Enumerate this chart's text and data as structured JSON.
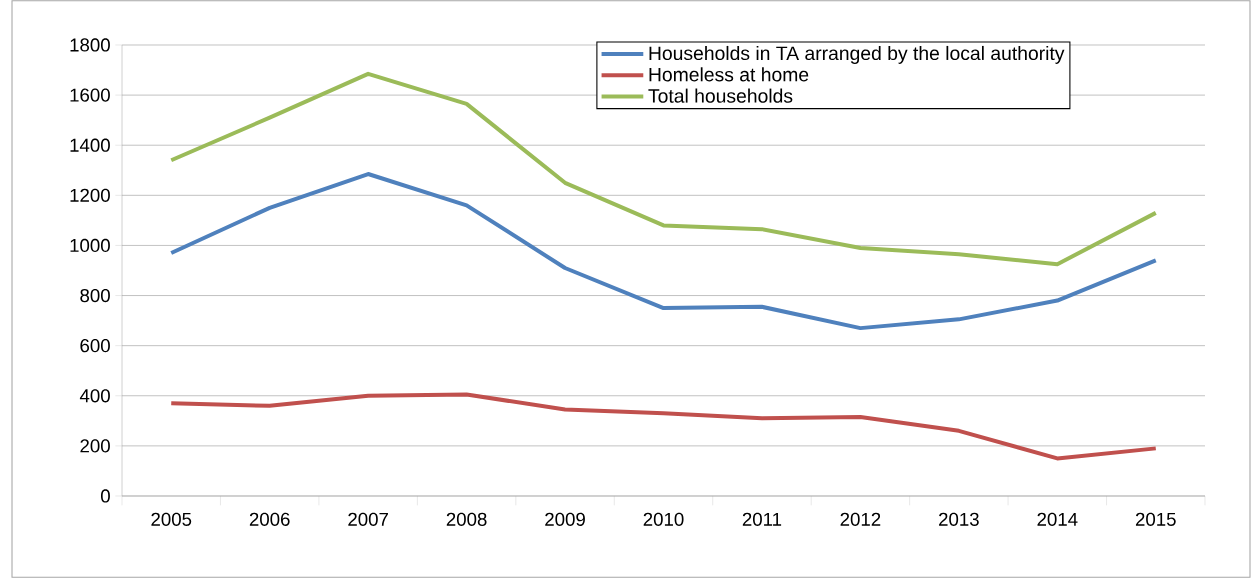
{
  "chart_data": {
    "type": "line",
    "categories": [
      "2005",
      "2006",
      "2007",
      "2008",
      "2009",
      "2010",
      "2011",
      "2012",
      "2013",
      "2014",
      "2015"
    ],
    "series": [
      {
        "name": "Households in TA arranged by the local authority",
        "color": "#4f81bd",
        "values": [
          970,
          1150,
          1285,
          1160,
          910,
          750,
          755,
          670,
          705,
          780,
          940
        ]
      },
      {
        "name": "Homeless at home",
        "color": "#c0504d",
        "values": [
          370,
          360,
          400,
          405,
          345,
          330,
          310,
          315,
          260,
          150,
          190
        ]
      },
      {
        "name": "Total households",
        "color": "#9bbb59",
        "values": [
          1340,
          1510,
          1685,
          1565,
          1250,
          1080,
          1065,
          990,
          965,
          925,
          1130
        ]
      }
    ],
    "ylim": [
      0,
      1800
    ],
    "yticks": [
      0,
      200,
      400,
      600,
      800,
      1000,
      1200,
      1400,
      1600,
      1800
    ],
    "grid": "y",
    "legend": "top right",
    "marker": "none",
    "line_style": "solid"
  }
}
